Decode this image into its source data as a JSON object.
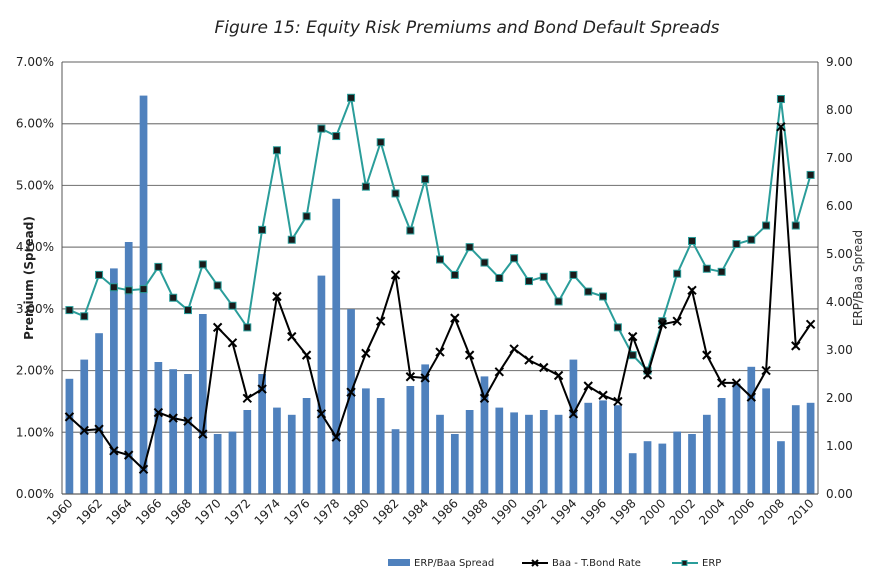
{
  "chart_data": {
    "type": "bar+line",
    "title": "Figure 15: Equity Risk Premiums  and Bond Default Spreads",
    "ylabel_left": "Premium (Spread)",
    "ylabel_right": "ERP/Baa Spread",
    "ylim_left": [
      0,
      7
    ],
    "ylim_right": [
      0,
      9
    ],
    "left_ticks": [
      "0.00%",
      "1.00%",
      "2.00%",
      "3.00%",
      "4.00%",
      "5.00%",
      "6.00%",
      "7.00%"
    ],
    "right_ticks": [
      "0.00",
      "1.00",
      "2.00",
      "3.00",
      "4.00",
      "5.00",
      "6.00",
      "7.00",
      "8.00",
      "9.00"
    ],
    "grid": true,
    "legend_position": "bottom-right",
    "x": [
      1960,
      1961,
      1962,
      1963,
      1964,
      1965,
      1966,
      1967,
      1968,
      1969,
      1970,
      1971,
      1972,
      1973,
      1974,
      1975,
      1976,
      1977,
      1978,
      1979,
      1980,
      1981,
      1982,
      1983,
      1984,
      1985,
      1986,
      1987,
      1988,
      1989,
      1990,
      1991,
      1992,
      1993,
      1994,
      1995,
      1996,
      1997,
      1998,
      1999,
      2000,
      2001,
      2002,
      2003,
      2004,
      2005,
      2006,
      2007,
      2008,
      2009,
      2010
    ],
    "x_tick_labels": [
      "1960",
      "1962",
      "1964",
      "1966",
      "1968",
      "1970",
      "1972",
      "1974",
      "1976",
      "1978",
      "1980",
      "1982",
      "1984",
      "1986",
      "1988",
      "1990",
      "1992",
      "1994",
      "1996",
      "1998",
      "2000",
      "2002",
      "2004",
      "2006",
      "2008",
      "2010"
    ],
    "series": [
      {
        "name": "ERP/Baa Spread",
        "type": "bar",
        "axis": "right",
        "color": "#4f81bd",
        "values": [
          2.4,
          2.8,
          3.35,
          4.7,
          5.25,
          8.3,
          2.75,
          2.6,
          2.5,
          3.75,
          1.25,
          1.3,
          1.75,
          2.5,
          1.8,
          1.65,
          2.0,
          4.55,
          6.15,
          3.85,
          2.2,
          2.0,
          1.35,
          2.25,
          2.7,
          1.65,
          1.25,
          1.75,
          2.45,
          1.8,
          1.7,
          1.65,
          1.75,
          1.65,
          2.8,
          1.9,
          1.95,
          1.85,
          0.85,
          1.1,
          1.05,
          1.3,
          1.25,
          1.65,
          2.0,
          2.3,
          2.65,
          2.2,
          1.1,
          1.85,
          1.9
        ]
      },
      {
        "name": "Baa - T.Bond Rate",
        "type": "line",
        "axis": "left",
        "color": "#000000",
        "values": [
          1.25,
          1.03,
          1.05,
          0.7,
          0.63,
          0.4,
          1.32,
          1.23,
          1.18,
          0.97,
          2.7,
          2.45,
          1.55,
          1.7,
          3.2,
          2.55,
          2.25,
          1.3,
          0.92,
          1.65,
          2.28,
          2.8,
          3.55,
          1.9,
          1.88,
          2.3,
          2.85,
          2.25,
          1.55,
          1.98,
          2.35,
          2.17,
          2.05,
          1.92,
          1.3,
          1.75,
          1.6,
          1.5,
          2.55,
          1.93,
          2.75,
          2.8,
          3.3,
          2.25,
          1.8,
          1.8,
          1.57,
          2.0,
          5.95,
          2.4,
          2.75
        ]
      },
      {
        "name": "ERP",
        "type": "line",
        "axis": "left",
        "color": "#2a9d9a",
        "values": [
          2.98,
          2.88,
          3.55,
          3.35,
          3.3,
          3.32,
          3.68,
          3.18,
          2.98,
          3.72,
          3.38,
          3.05,
          2.7,
          4.28,
          5.57,
          4.12,
          4.5,
          5.92,
          5.8,
          6.42,
          4.98,
          5.7,
          4.87,
          4.27,
          5.1,
          3.8,
          3.55,
          4.0,
          3.75,
          3.5,
          3.82,
          3.45,
          3.52,
          3.12,
          3.55,
          3.28,
          3.2,
          2.7,
          2.25,
          2.0,
          2.8,
          3.57,
          4.1,
          3.65,
          3.6,
          4.05,
          4.12,
          4.35,
          6.4,
          4.35,
          5.17
        ]
      }
    ]
  }
}
